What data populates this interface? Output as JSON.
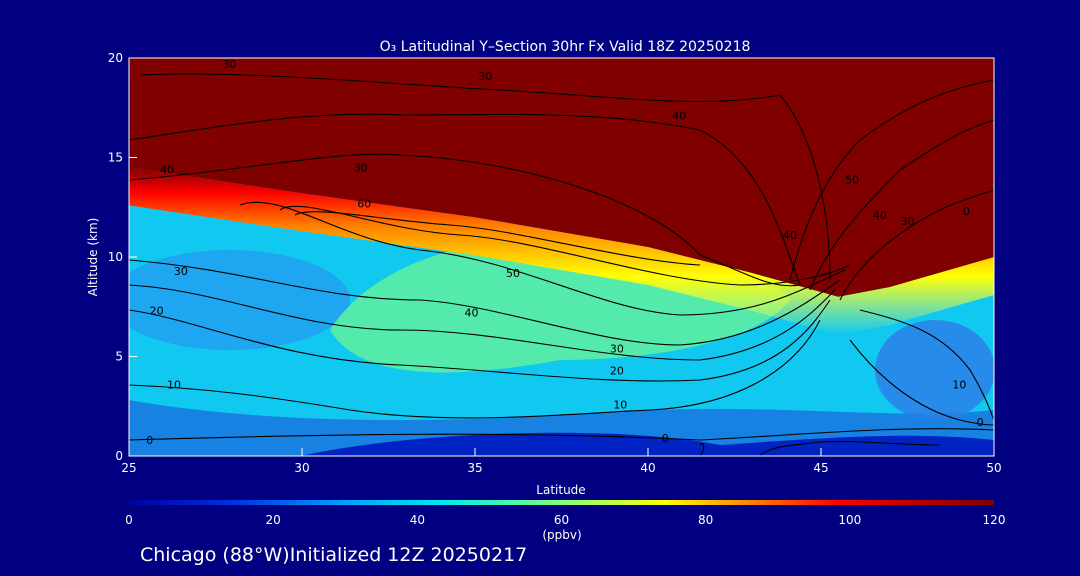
{
  "chart_data": {
    "type": "heatmap",
    "title": "O₃ Latitudinal Y–Section 30hr  Fx Valid 18Z 20250218",
    "xlabel": "Latitude",
    "ylabel": "Altitude (km)",
    "xlim": [
      25,
      50
    ],
    "ylim": [
      0,
      20
    ],
    "x_ticks": [
      "25",
      "30",
      "35",
      "40",
      "45",
      "50"
    ],
    "y_ticks": [
      "0",
      "5",
      "10",
      "15",
      "20"
    ],
    "colorbar": {
      "min": 0,
      "max": 120,
      "ticks": [
        "0",
        "20",
        "40",
        "60",
        "80",
        "100",
        "120"
      ],
      "unit": "(ppbv)",
      "colors": [
        "#0000a0",
        "#0030e0",
        "#00a0ff",
        "#00e8f0",
        "#80ff80",
        "#ffff00",
        "#ff8000",
        "#ff0000",
        "#800000"
      ]
    },
    "tropopause_km": [
      {
        "lat": 25,
        "alt": 14.5
      },
      {
        "lat": 30,
        "alt": 13.2
      },
      {
        "lat": 35,
        "alt": 12.0
      },
      {
        "lat": 40,
        "alt": 10.5
      },
      {
        "lat": 43,
        "alt": 9.2
      },
      {
        "lat": 45.5,
        "alt": 8.0
      },
      {
        "lat": 47,
        "alt": 8.5
      },
      {
        "lat": 50,
        "alt": 10.0
      }
    ],
    "contour_labels": [
      {
        "text": "30",
        "lat": 26.5,
        "alt": 9.3
      },
      {
        "text": "20",
        "lat": 25.8,
        "alt": 7.3
      },
      {
        "text": "10",
        "lat": 26.3,
        "alt": 3.6
      },
      {
        "text": "0",
        "lat": 25.6,
        "alt": 0.8
      },
      {
        "text": "40",
        "lat": 26.1,
        "alt": 14.4
      },
      {
        "text": "30",
        "lat": 27.9,
        "alt": 19.7
      },
      {
        "text": "30",
        "lat": 35.3,
        "alt": 19.1
      },
      {
        "text": "40",
        "lat": 40.9,
        "alt": 17.1
      },
      {
        "text": "30",
        "lat": 31.7,
        "alt": 14.5
      },
      {
        "text": "60",
        "lat": 31.8,
        "alt": 12.7
      },
      {
        "text": "50",
        "lat": 36.1,
        "alt": 9.2
      },
      {
        "text": "40",
        "lat": 34.9,
        "alt": 7.2
      },
      {
        "text": "30",
        "lat": 39.1,
        "alt": 5.4
      },
      {
        "text": "20",
        "lat": 39.1,
        "alt": 4.3
      },
      {
        "text": "10",
        "lat": 39.2,
        "alt": 2.6
      },
      {
        "text": "0",
        "lat": 40.5,
        "alt": 0.9
      },
      {
        "text": "50",
        "lat": 45.9,
        "alt": 13.9
      },
      {
        "text": "40",
        "lat": 44.1,
        "alt": 11.1
      },
      {
        "text": "40",
        "lat": 46.7,
        "alt": 12.1
      },
      {
        "text": "30",
        "lat": 47.5,
        "alt": 11.8
      },
      {
        "text": "0",
        "lat": 49.2,
        "alt": 12.3
      },
      {
        "text": "10",
        "lat": 49.0,
        "alt": 3.6
      },
      {
        "text": "0",
        "lat": 49.6,
        "alt": 1.7
      }
    ]
  },
  "footer": "Chicago (88°W)Initialized 12Z 20250217"
}
